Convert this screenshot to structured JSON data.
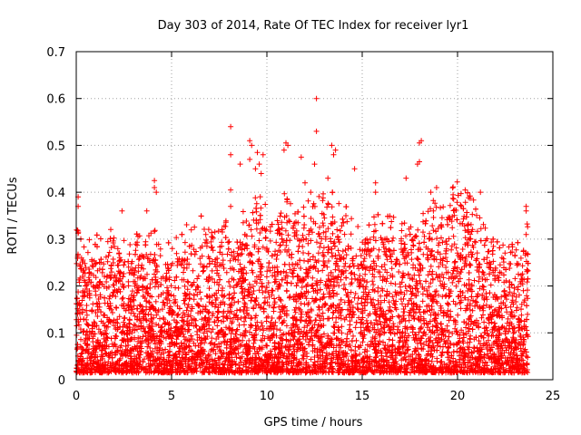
{
  "chart_data": {
    "type": "scatter",
    "title": "Day 303 of 2014, Rate Of TEC Index for receiver lyr1",
    "xlabel": "GPS time / hours",
    "ylabel": "ROTI / TECUs",
    "xlim": [
      0,
      25
    ],
    "ylim": [
      0,
      0.7
    ],
    "x_ticks": [
      0,
      5,
      10,
      15,
      20,
      25
    ],
    "y_ticks": [
      0,
      0.1,
      0.2,
      0.3,
      0.4,
      0.5,
      0.6,
      0.7
    ],
    "x_tick_labels": [
      "0",
      "5",
      "10",
      "15",
      "20",
      "25"
    ],
    "y_tick_labels": [
      "0",
      "0.1",
      "0.2",
      "0.3",
      "0.4",
      "0.5",
      "0.6",
      "0.7"
    ],
    "grid": true,
    "marker": "+",
    "series": [
      {
        "name": "ROTI",
        "color": "#ff0000",
        "x_range": [
          0,
          23.7
        ],
        "envelope": {
          "x": [
            0,
            0.5,
            1,
            1.5,
            2,
            2.5,
            3,
            3.5,
            4,
            4.5,
            5,
            5.5,
            6,
            6.5,
            7,
            7.5,
            8,
            8.5,
            9,
            9.5,
            10,
            10.5,
            11,
            11.5,
            12,
            12.5,
            13,
            13.5,
            14,
            14.5,
            15,
            15.5,
            16,
            16.5,
            17,
            17.5,
            18,
            18.5,
            19,
            19.5,
            20,
            20.5,
            21,
            21.5,
            22,
            22.5,
            23,
            23.5,
            23.7
          ],
          "typical_max": [
            0.28,
            0.25,
            0.26,
            0.27,
            0.3,
            0.28,
            0.26,
            0.27,
            0.28,
            0.26,
            0.25,
            0.27,
            0.29,
            0.3,
            0.3,
            0.28,
            0.3,
            0.29,
            0.33,
            0.35,
            0.33,
            0.3,
            0.36,
            0.32,
            0.33,
            0.34,
            0.36,
            0.35,
            0.33,
            0.3,
            0.3,
            0.3,
            0.31,
            0.3,
            0.3,
            0.29,
            0.32,
            0.33,
            0.34,
            0.35,
            0.38,
            0.36,
            0.34,
            0.27,
            0.25,
            0.24,
            0.24,
            0.26,
            0.3
          ]
        },
        "notable_points": [
          {
            "x": 0.1,
            "y": 0.39
          },
          {
            "x": 0.1,
            "y": 0.37
          },
          {
            "x": 2.4,
            "y": 0.36
          },
          {
            "x": 3.7,
            "y": 0.36
          },
          {
            "x": 4.1,
            "y": 0.425
          },
          {
            "x": 4.1,
            "y": 0.41
          },
          {
            "x": 4.2,
            "y": 0.4
          },
          {
            "x": 8.1,
            "y": 0.54
          },
          {
            "x": 8.1,
            "y": 0.48
          },
          {
            "x": 8.1,
            "y": 0.405
          },
          {
            "x": 8.1,
            "y": 0.37
          },
          {
            "x": 8.6,
            "y": 0.46
          },
          {
            "x": 9.1,
            "y": 0.51
          },
          {
            "x": 9.2,
            "y": 0.5
          },
          {
            "x": 9.1,
            "y": 0.47
          },
          {
            "x": 9.5,
            "y": 0.485
          },
          {
            "x": 9.6,
            "y": 0.46
          },
          {
            "x": 9.4,
            "y": 0.45
          },
          {
            "x": 9.8,
            "y": 0.48
          },
          {
            "x": 9.7,
            "y": 0.44
          },
          {
            "x": 11.0,
            "y": 0.505
          },
          {
            "x": 10.9,
            "y": 0.49
          },
          {
            "x": 11.1,
            "y": 0.5
          },
          {
            "x": 11.8,
            "y": 0.475
          },
          {
            "x": 12.6,
            "y": 0.6
          },
          {
            "x": 12.6,
            "y": 0.53
          },
          {
            "x": 12.5,
            "y": 0.46
          },
          {
            "x": 12.0,
            "y": 0.42
          },
          {
            "x": 12.3,
            "y": 0.4
          },
          {
            "x": 13.4,
            "y": 0.5
          },
          {
            "x": 13.5,
            "y": 0.48
          },
          {
            "x": 13.6,
            "y": 0.49
          },
          {
            "x": 13.2,
            "y": 0.43
          },
          {
            "x": 14.6,
            "y": 0.45
          },
          {
            "x": 15.7,
            "y": 0.42
          },
          {
            "x": 15.7,
            "y": 0.4
          },
          {
            "x": 17.3,
            "y": 0.43
          },
          {
            "x": 18.0,
            "y": 0.505
          },
          {
            "x": 18.1,
            "y": 0.51
          },
          {
            "x": 18.0,
            "y": 0.465
          },
          {
            "x": 17.9,
            "y": 0.46
          },
          {
            "x": 18.6,
            "y": 0.4
          },
          {
            "x": 18.9,
            "y": 0.41
          },
          {
            "x": 20.4,
            "y": 0.405
          },
          {
            "x": 21.2,
            "y": 0.4
          },
          {
            "x": 23.6,
            "y": 0.37
          },
          {
            "x": 23.6,
            "y": 0.36
          },
          {
            "x": 23.6,
            "y": 0.31
          },
          {
            "x": 23.6,
            "y": 0.27
          }
        ]
      }
    ]
  }
}
